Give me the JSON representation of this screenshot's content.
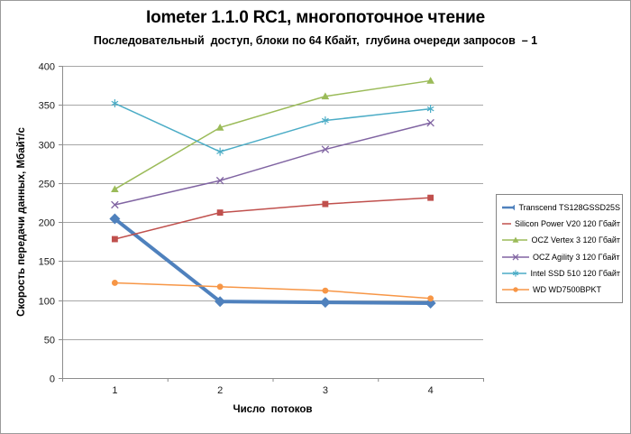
{
  "chart_data": {
    "type": "line",
    "title": "Iometer 1.1.0 RC1, многопоточное чтение",
    "subtitle": "Последовательный  доступ, блоки по 64 Кбайт,  глубина очереди запросов  – 1",
    "xlabel": "Число  потоков",
    "ylabel": "Скорость  передачи данных, Мбайт/с",
    "categories": [
      "1",
      "2",
      "3",
      "4"
    ],
    "ylim": [
      0,
      400
    ],
    "ytick_step": 50,
    "grid": "horizontal-only",
    "grid_color": "#A6A6A6",
    "axis_color": "#8C8C8C",
    "legend_position": "right",
    "series": [
      {
        "name": "Transcend TS128GSSD25S",
        "color": "#4F81BD",
        "marker": "diamond",
        "line_width": 4,
        "values": [
          204,
          98,
          97,
          96
        ]
      },
      {
        "name": "Silicon Power V20 120 Гбайт",
        "color": "#C0504D",
        "marker": "square",
        "line_width": 1.5,
        "values": [
          178,
          212,
          223,
          231
        ]
      },
      {
        "name": "OCZ Vertex 3 120 Гбайт",
        "color": "#9BBB59",
        "marker": "triangle",
        "line_width": 1.5,
        "values": [
          242,
          321,
          361,
          381
        ]
      },
      {
        "name": "OCZ Agility 3 120 Гбайт",
        "color": "#8064A2",
        "marker": "x",
        "line_width": 1.5,
        "values": [
          222,
          253,
          293,
          327
        ]
      },
      {
        "name": "Intel SSD 510 120 Гбайт",
        "color": "#4BACC6",
        "marker": "asterisk",
        "line_width": 1.5,
        "values": [
          352,
          290,
          330,
          345
        ]
      },
      {
        "name": "WD WD7500BPKT",
        "color": "#F79646",
        "marker": "circle",
        "line_width": 1.5,
        "values": [
          122,
          117,
          112,
          102
        ]
      }
    ]
  }
}
